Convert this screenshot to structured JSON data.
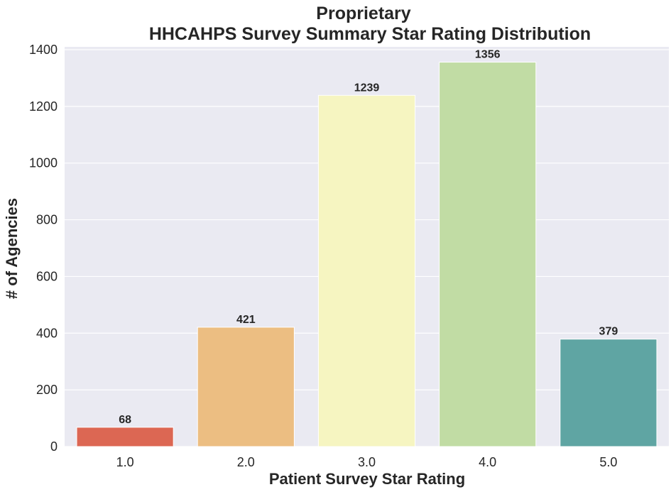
{
  "chart_data": {
    "type": "bar",
    "title": [
      "Proprietary",
      "HHCAHPS Survey Summary Star Rating Distribution"
    ],
    "xlabel": "Patient Survey Star Rating",
    "ylabel": "# of Agencies",
    "categories": [
      "1.0",
      "2.0",
      "3.0",
      "4.0",
      "5.0"
    ],
    "values": [
      68,
      421,
      1239,
      1356,
      379
    ],
    "data_labels": [
      "68",
      "421",
      "1239",
      "1356",
      "379"
    ],
    "colors": [
      "#dc6753",
      "#ecbe82",
      "#f6f5c1",
      "#c1dca4",
      "#5fa5a3"
    ],
    "ylim": [
      0,
      1410
    ],
    "yticks": [
      0,
      200,
      400,
      600,
      800,
      1000,
      1200,
      1400
    ],
    "ytick_labels": [
      "0",
      "200",
      "400",
      "600",
      "800",
      "1000",
      "1200",
      "1400"
    ],
    "grid": true,
    "background": "#eaeaf2",
    "grid_color": "#ffffff"
  }
}
